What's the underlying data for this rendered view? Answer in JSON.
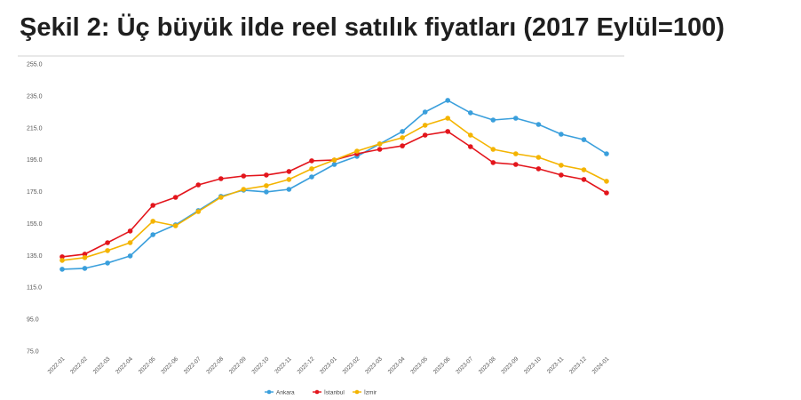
{
  "chart_data": {
    "type": "line",
    "title": "Şekil 2: Üç büyük ilde reel satılık fiyatları (2017 Eylül=100)",
    "xlabel": "",
    "ylabel": "",
    "categories": [
      "2022-01",
      "2022-02",
      "2022-03",
      "2022-04",
      "2022-05",
      "2022-06",
      "2022-07",
      "2022-08",
      "2022-09",
      "2022-10",
      "2022-11",
      "2022-12",
      "2023-01",
      "2023-02",
      "2023-03",
      "2023-04",
      "2023-05",
      "2023-06",
      "2023-07",
      "2023-08",
      "2023-09",
      "2023-10",
      "2023-11",
      "2023-12",
      "2024-01"
    ],
    "ylim": [
      75,
      255
    ],
    "y_tick_labels": [
      "75.0",
      "95.0",
      "115.0",
      "135.0",
      "155.0",
      "175.0",
      "195.0",
      "215.0",
      "235.0",
      "255.0"
    ],
    "grid": false,
    "legend_position": "bottom",
    "series": [
      {
        "name": "Ankara",
        "color": "#3a9fdc",
        "values": [
          126.3,
          126.9,
          130.2,
          134.7,
          148.0,
          154.2,
          163.1,
          172.0,
          175.9,
          174.8,
          176.4,
          184.2,
          192.0,
          197.1,
          204.9,
          212.7,
          224.9,
          232.2,
          224.4,
          219.9,
          221.0,
          217.1,
          211.0,
          207.6,
          198.7
        ]
      },
      {
        "name": "İstanbul",
        "color": "#e3151c",
        "values": [
          134.1,
          135.8,
          143.0,
          150.3,
          166.4,
          171.4,
          179.2,
          183.1,
          184.8,
          185.4,
          187.6,
          194.3,
          194.8,
          198.7,
          201.5,
          203.7,
          210.4,
          212.7,
          203.2,
          193.2,
          192.0,
          189.3,
          185.4,
          182.6,
          174.2
        ]
      },
      {
        "name": "İzmir",
        "color": "#f4b400",
        "values": [
          131.9,
          133.6,
          138.0,
          143.0,
          156.4,
          153.6,
          162.5,
          171.4,
          176.4,
          178.7,
          182.6,
          189.3,
          194.8,
          200.4,
          204.9,
          208.8,
          216.6,
          221.0,
          210.4,
          201.5,
          198.7,
          196.5,
          191.5,
          188.7,
          181.5
        ]
      }
    ]
  }
}
